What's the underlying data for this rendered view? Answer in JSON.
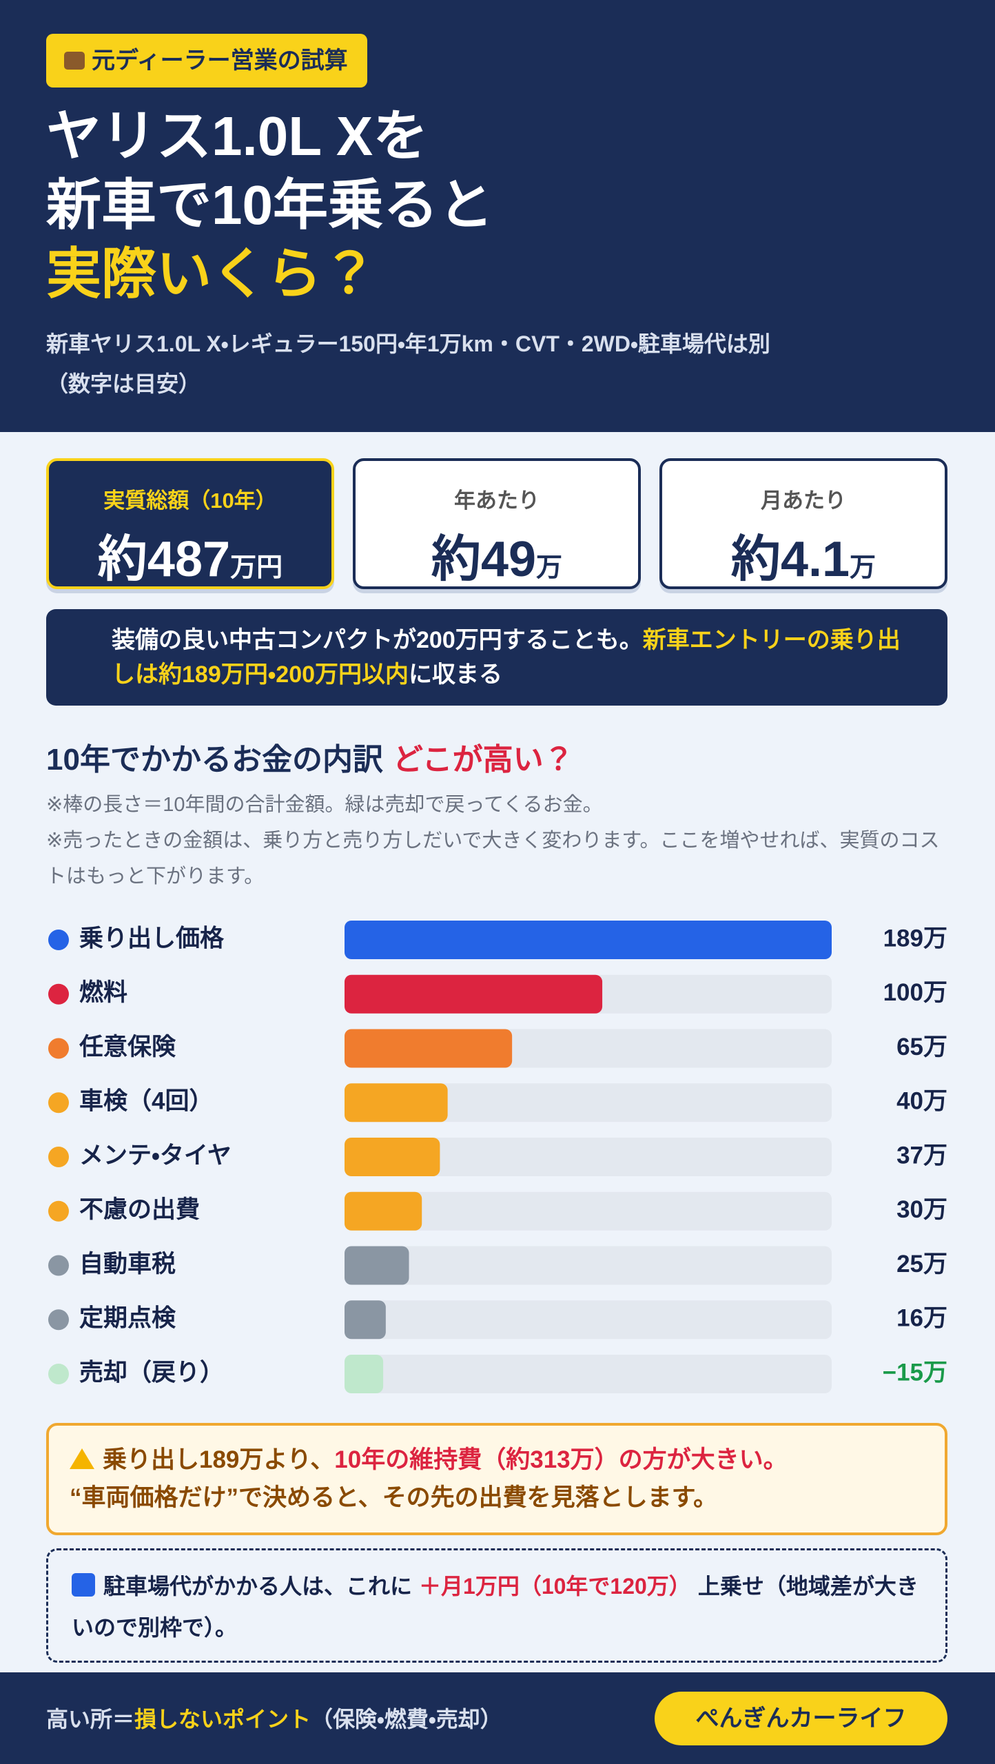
{
  "header": {
    "tag": "元ディーラー営業の試算",
    "title_lines": [
      "ヤリス1.0L Xを",
      "新車で10年乗ると"
    ],
    "title_highlight": "実際いくら？",
    "subtitle_lines": [
      "新車ヤリス1.0L X・レギュラー150円・年1万km・CVT・2WD・駐車場代は別",
      "（数字は目安）"
    ]
  },
  "stats": [
    {
      "label": "実質総額（10年）",
      "prefix": "約",
      "value": "487",
      "unit": "万円"
    },
    {
      "label": "年あたり",
      "prefix": "約",
      "value": "49",
      "unit": "万"
    },
    {
      "label": "月あたり",
      "prefix": "約",
      "value": "4.1",
      "unit": "万"
    }
  ],
  "note": {
    "text": "装備の良い中古コンパクトが200万円することも。",
    "highlight": "新車エントリーの乗り出しは約189万円・200万円以内",
    "tail": "に収まる"
  },
  "chart_data": {
    "type": "hbar",
    "title": "10年でかかるお金の内訳",
    "title_highlight": "どこが高い？",
    "notes": [
      "※棒の長さ＝10年間の合計金額。緑は売却で戻ってくるお金。",
      "※売ったときの金額は、乗り方と売り方しだいで大きく変わります。ここを増やせれば、実質のコストはもっと下がります。"
    ],
    "categories": [
      "乗り出し価格",
      "燃料",
      "任意保険",
      "車検（4回）",
      "メンテ・タイヤ",
      "不慮の出費",
      "自動車税",
      "定期点検",
      "売却（戻り）"
    ],
    "values": [
      189,
      100,
      65,
      40,
      37,
      30,
      25,
      16,
      -15
    ],
    "value_labels": [
      "189万",
      "100万",
      "65万",
      "40万",
      "37万",
      "30万",
      "25万",
      "16万",
      "−15万"
    ],
    "colors": [
      "#2563e6",
      "#dc2440",
      "#f07c2e",
      "#f5a623",
      "#f5a623",
      "#f5a623",
      "#8a96a3",
      "#8a96a3",
      "#bfe8cc"
    ],
    "value_label_colors": [
      "#17244a",
      "#17244a",
      "#17244a",
      "#17244a",
      "#17244a",
      "#17244a",
      "#17244a",
      "#17244a",
      "#1a9a4a"
    ],
    "xlim": [
      0,
      189
    ]
  },
  "warning": {
    "lead": "乗り出し189万より、",
    "highlight": "10年の維持費（約313万）の方が大きい。",
    "line2": "“車両価格だけ”で決めると、その先の出費を見落とします。"
  },
  "parking": {
    "lead": "駐車場代がかかる人は、これに",
    "highlight": "＋月1万円（10年で120万）",
    "tail": "上乗せ（地域差が大きいので別枠で）。"
  },
  "footer": {
    "lead": "高い所＝",
    "highlight": "損しないポイント",
    "tail": "（保険・燃費・売却）",
    "brand": "ぺんぎんカーライフ"
  }
}
